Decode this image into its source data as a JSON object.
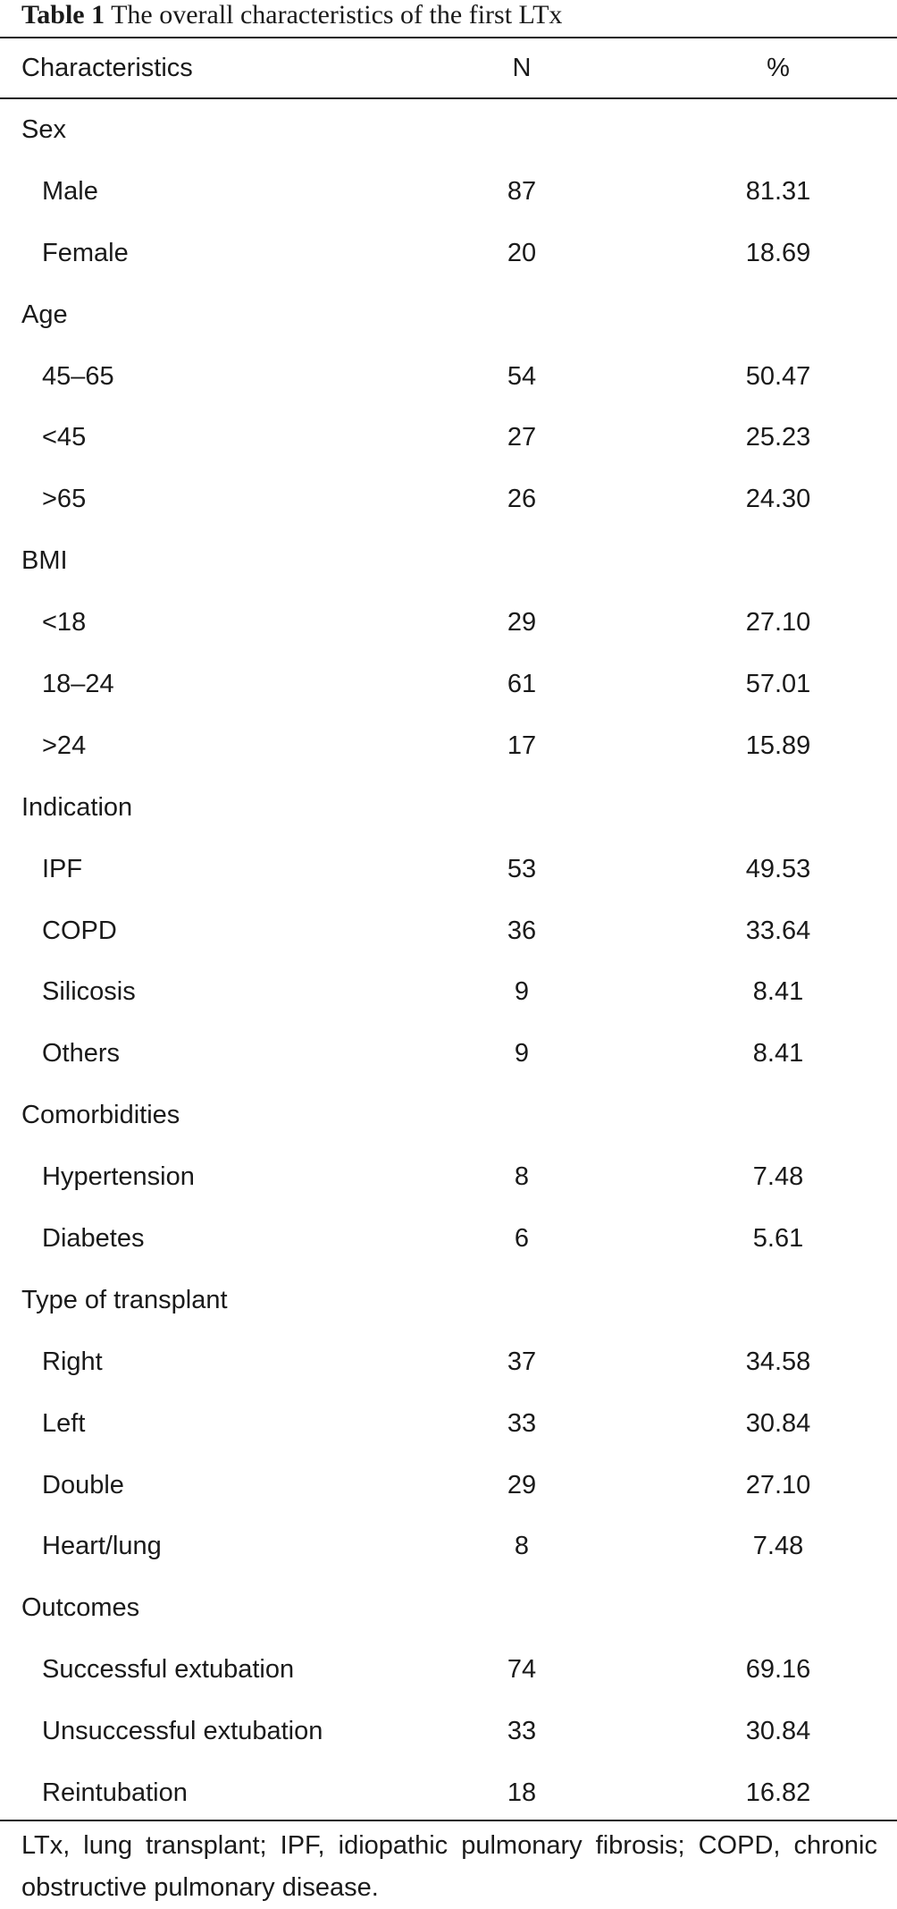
{
  "caption": {
    "label": "Table 1",
    "text": "The overall characteristics of the first LTx"
  },
  "table": {
    "columns": [
      "Characteristics",
      "N",
      "%"
    ],
    "rows": [
      {
        "type": "group",
        "label": "Sex"
      },
      {
        "type": "item",
        "label": "Male",
        "n": "87",
        "pct": "81.31"
      },
      {
        "type": "item",
        "label": "Female",
        "n": "20",
        "pct": "18.69"
      },
      {
        "type": "group",
        "label": "Age"
      },
      {
        "type": "item",
        "label": "45–65",
        "n": "54",
        "pct": "50.47"
      },
      {
        "type": "item",
        "label": "<45",
        "n": "27",
        "pct": "25.23"
      },
      {
        "type": "item",
        "label": ">65",
        "n": "26",
        "pct": "24.30"
      },
      {
        "type": "group",
        "label": "BMI"
      },
      {
        "type": "item",
        "label": "<18",
        "n": "29",
        "pct": "27.10"
      },
      {
        "type": "item",
        "label": "18–24",
        "n": "61",
        "pct": "57.01"
      },
      {
        "type": "item",
        "label": ">24",
        "n": "17",
        "pct": "15.89"
      },
      {
        "type": "group",
        "label": "Indication"
      },
      {
        "type": "item",
        "label": "IPF",
        "n": "53",
        "pct": "49.53"
      },
      {
        "type": "item",
        "label": "COPD",
        "n": "36",
        "pct": "33.64"
      },
      {
        "type": "item",
        "label": "Silicosis",
        "n": "9",
        "pct": "8.41"
      },
      {
        "type": "item",
        "label": "Others",
        "n": "9",
        "pct": "8.41"
      },
      {
        "type": "group",
        "label": "Comorbidities"
      },
      {
        "type": "item",
        "label": "Hypertension",
        "n": "8",
        "pct": "7.48"
      },
      {
        "type": "item",
        "label": "Diabetes",
        "n": "6",
        "pct": "5.61"
      },
      {
        "type": "group",
        "label": "Type of transplant"
      },
      {
        "type": "item",
        "label": "Right",
        "n": "37",
        "pct": "34.58"
      },
      {
        "type": "item",
        "label": "Left",
        "n": "33",
        "pct": "30.84"
      },
      {
        "type": "item",
        "label": "Double",
        "n": "29",
        "pct": "27.10"
      },
      {
        "type": "item",
        "label": "Heart/lung",
        "n": "8",
        "pct": "7.48"
      },
      {
        "type": "group",
        "label": "Outcomes"
      },
      {
        "type": "item",
        "label": "Successful extubation",
        "n": "74",
        "pct": "69.16"
      },
      {
        "type": "item",
        "label": "Unsuccessful extubation",
        "n": "33",
        "pct": "30.84"
      },
      {
        "type": "item",
        "label": "Reintubation",
        "n": "18",
        "pct": "16.82"
      }
    ]
  },
  "footnote": "LTx, lung transplant; IPF, idiopathic pulmonary fibrosis; COPD, chronic obstructive pulmonary disease."
}
